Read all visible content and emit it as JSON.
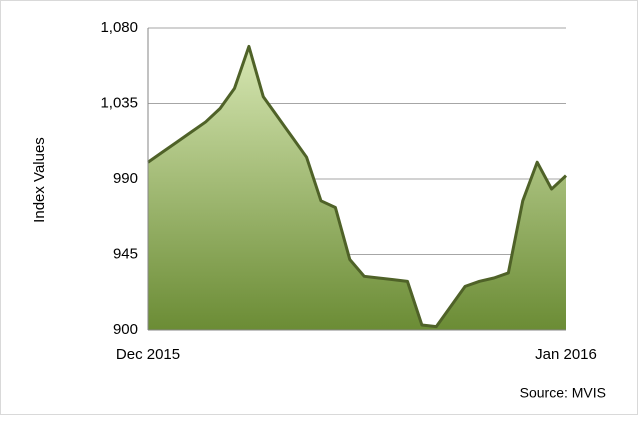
{
  "chart_data": {
    "type": "area",
    "y_label": "Index Values",
    "annotation": "Source: MVIS",
    "categories": [
      "Dec 2015",
      null,
      null,
      null,
      null,
      null,
      null,
      null,
      null,
      null,
      null,
      null,
      null,
      null,
      null,
      null,
      null,
      null,
      null,
      null,
      null,
      null,
      null,
      null,
      null,
      null,
      null,
      null,
      null,
      "Jan 2016"
    ],
    "values": [
      1000,
      1006,
      1012,
      1018,
      1024,
      1032,
      1044,
      1069,
      1039,
      1027,
      1015,
      1003,
      977,
      973,
      942,
      932,
      931,
      930,
      929,
      903,
      902,
      914,
      926,
      929,
      931,
      934,
      977,
      1000,
      984,
      992
    ],
    "color": "#4f6228",
    "ylim": [
      900,
      1080
    ],
    "yticks": [
      900,
      945,
      990,
      {
        "value": 1035,
        "label": "1,035"
      },
      {
        "value": 1080,
        "label": "1,080"
      }
    ],
    "grid": true
  }
}
